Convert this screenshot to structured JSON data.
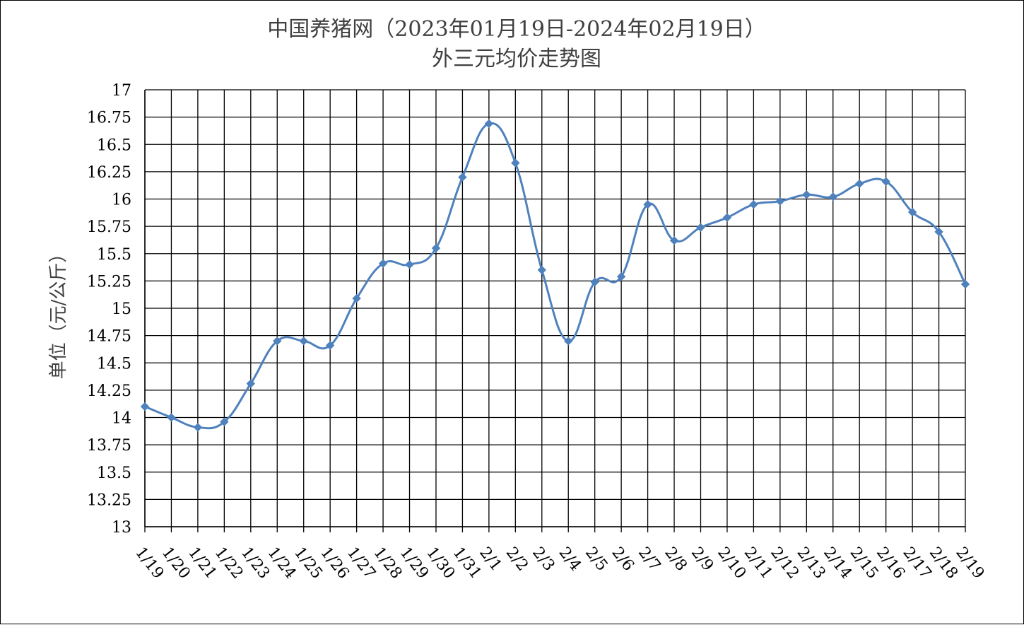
{
  "chart_data": {
    "type": "line",
    "title": "中国养猪网（2023年01月19日-2024年02月19日）",
    "subtitle": "外三元均价走势图",
    "xlabel": "",
    "ylabel": "单位（元/公斤）",
    "ylim": [
      13,
      17
    ],
    "ytick_step": 0.25,
    "y_ticks": [
      "13",
      "13.25",
      "13.5",
      "13.75",
      "14",
      "14.25",
      "14.5",
      "14.75",
      "15",
      "15.25",
      "15.5",
      "15.75",
      "16",
      "16.25",
      "16.5",
      "16.75",
      "17"
    ],
    "grid": true,
    "categories": [
      "1/19",
      "1/20",
      "1/21",
      "1/22",
      "1/23",
      "1/24",
      "1/25",
      "1/26",
      "1/27",
      "1/28",
      "1/29",
      "1/30",
      "1/31",
      "2/1",
      "2/2",
      "2/3",
      "2/4",
      "2/5",
      "2/6",
      "2/7",
      "2/8",
      "2/9",
      "2/10",
      "2/11",
      "2/12",
      "2/13",
      "2/14",
      "2/15",
      "2/16",
      "2/17",
      "2/18",
      "2/19"
    ],
    "series": [
      {
        "color": "#4f81bd",
        "values": [
          14.1,
          14.0,
          13.91,
          13.96,
          14.31,
          14.7,
          14.7,
          14.66,
          15.09,
          15.41,
          15.4,
          15.55,
          16.2,
          16.69,
          16.33,
          15.35,
          14.7,
          15.24,
          15.29,
          15.95,
          15.62,
          15.74,
          15.83,
          15.95,
          15.98,
          16.04,
          16.02,
          16.14,
          16.16,
          15.88,
          15.7,
          15.22
        ]
      }
    ]
  }
}
